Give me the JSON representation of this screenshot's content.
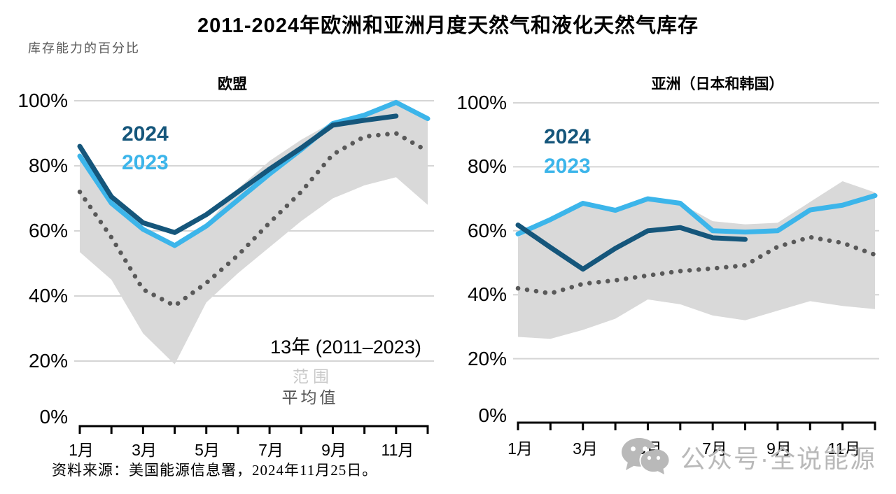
{
  "page_title": "2011-2024年欧洲和亚洲月度天然气和液化天然气库存",
  "subtitle": "库存能力的百分比",
  "source": "资料来源：美国能源信息署，2024年11月25日。",
  "watermark": {
    "icon": "wechat-icon",
    "text": "公众号·全说能源"
  },
  "legend": {
    "y2024": "2024",
    "y2023": "2023"
  },
  "colors": {
    "y2024": "#15567b",
    "y2023": "#3cb5ea",
    "average": "#595959",
    "band": "#d9d9d9",
    "grid": "#d5d5d5",
    "axis": "#000000",
    "watermark": "#b9b9b9"
  },
  "chart_data": [
    {
      "type": "line",
      "title": "欧盟",
      "ylabel": "库存能力的百分比",
      "ylim": [
        0,
        100
      ],
      "grid": "horizontal",
      "y_ticks": [
        "0%",
        "20%",
        "40%",
        "60%",
        "80%",
        "100%"
      ],
      "x_ticks": [
        "1月",
        "3月",
        "5月",
        "7月",
        "9月",
        "11月"
      ],
      "legend_position": "top-left-inside",
      "annotations": {
        "range_title": "13年 (2011–2023)",
        "range_label": "范围",
        "average_label": "平均值"
      },
      "series": {
        "y2024": [
          86,
          70.5,
          62.5,
          59.5,
          65,
          72,
          79,
          85.5,
          92.5,
          94,
          95.3,
          null
        ],
        "y2023": [
          83,
          68.5,
          60.5,
          55.5,
          61.5,
          69.5,
          77.5,
          85,
          93,
          95.6,
          99.5,
          94.5
        ],
        "average": [
          72,
          58,
          42,
          37,
          44,
          52.5,
          62.5,
          72,
          83.5,
          89,
          90,
          84.5
        ],
        "range_top": [
          83,
          68.5,
          60.5,
          55.8,
          62,
          73,
          81.5,
          88,
          93.5,
          96,
          99.5,
          94.5
        ],
        "range_bottom": [
          53.5,
          45,
          28.5,
          19,
          38,
          47,
          55,
          63,
          70,
          74,
          76.5,
          68
        ]
      }
    },
    {
      "type": "line",
      "title": "亚洲（日本和韩国）",
      "ylabel": "库存能力的百分比",
      "ylim": [
        0,
        100
      ],
      "grid": "horizontal",
      "y_ticks": [
        "0%",
        "20%",
        "40%",
        "60%",
        "80%",
        "100%"
      ],
      "x_ticks": [
        "1月",
        "3月",
        "5月",
        "7月",
        "9月",
        "11月"
      ],
      "legend_position": "top-left-inside",
      "series": {
        "y2024": [
          61.8,
          54.8,
          48,
          54.5,
          60,
          61,
          57.8,
          57.3,
          null,
          null,
          null,
          null
        ],
        "y2023": [
          59,
          63.5,
          68.6,
          66.4,
          70,
          68.6,
          60,
          59.6,
          60,
          66.5,
          68,
          71
        ],
        "average": [
          42,
          40.4,
          43.4,
          44.5,
          46,
          47.4,
          48.2,
          49.2,
          55,
          58,
          56.2,
          52.5
        ],
        "range_top": [
          58,
          63.5,
          68.6,
          66.4,
          70,
          68.6,
          63,
          62,
          62.5,
          69,
          75.5,
          72
        ],
        "range_bottom": [
          26.8,
          26.2,
          29,
          32.5,
          38.5,
          37,
          33.5,
          32,
          35,
          38,
          36.5,
          35.5
        ]
      }
    }
  ]
}
